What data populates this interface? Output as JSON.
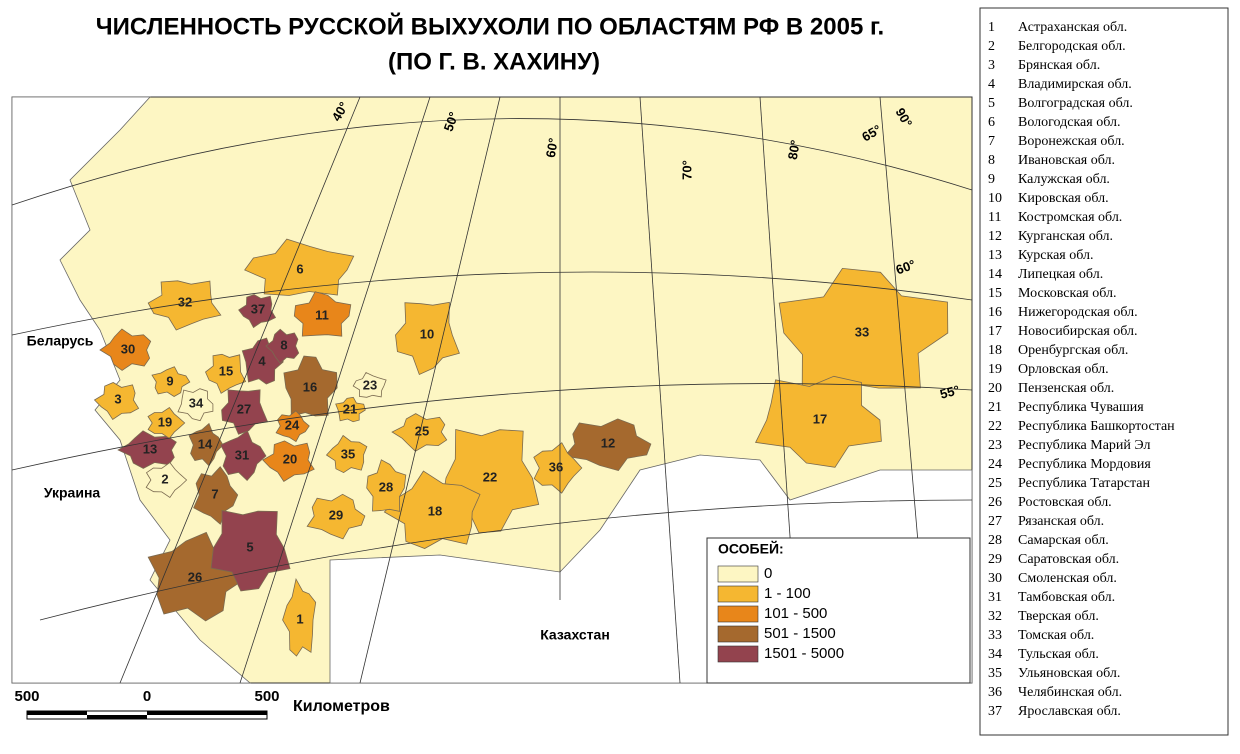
{
  "title": {
    "line1": "ЧИСЛЕННОСТЬ РУССКОЙ ВЫХУХОЛИ ПО ОБЛАСТЯМ РФ В 2005 г.",
    "line2": "(ПО Г. В. ХАХИНУ)"
  },
  "legend": {
    "title": "ОСОБЕЙ:",
    "items": [
      {
        "label": "0",
        "color": "#fdf6c3"
      },
      {
        "label": "1 - 100",
        "color": "#f5b731"
      },
      {
        "label": "101 - 500",
        "color": "#e8861a"
      },
      {
        "label": "501 - 1500",
        "color": "#a5692e"
      },
      {
        "label": "1501 - 5000",
        "color": "#93434e"
      }
    ]
  },
  "map": {
    "countries": [
      "Беларусь",
      "Украина",
      "Казахстан"
    ],
    "graticule": [
      "40°",
      "50°",
      "60°",
      "70°",
      "80°",
      "65°",
      "90°",
      "60°",
      "55°"
    ],
    "regions": [
      {
        "label": "1",
        "class": 1
      },
      {
        "label": "2",
        "class": 0
      },
      {
        "label": "3",
        "class": 1
      },
      {
        "label": "4",
        "class": 4
      },
      {
        "label": "5",
        "class": 4
      },
      {
        "label": "6",
        "class": 1
      },
      {
        "label": "7",
        "class": 3
      },
      {
        "label": "8",
        "class": 4
      },
      {
        "label": "9",
        "class": 1
      },
      {
        "label": "10",
        "class": 1
      },
      {
        "label": "11",
        "class": 2
      },
      {
        "label": "12",
        "class": 3
      },
      {
        "label": "13",
        "class": 4
      },
      {
        "label": "14",
        "class": 3
      },
      {
        "label": "15",
        "class": 1
      },
      {
        "label": "16",
        "class": 3
      },
      {
        "label": "17",
        "class": 1
      },
      {
        "label": "18",
        "class": 1
      },
      {
        "label": "19",
        "class": 1
      },
      {
        "label": "20",
        "class": 2
      },
      {
        "label": "21",
        "class": 1
      },
      {
        "label": "22",
        "class": 1
      },
      {
        "label": "23",
        "class": 0
      },
      {
        "label": "24",
        "class": 2
      },
      {
        "label": "25",
        "class": 1
      },
      {
        "label": "26",
        "class": 3
      },
      {
        "label": "27",
        "class": 4
      },
      {
        "label": "28",
        "class": 1
      },
      {
        "label": "29",
        "class": 1
      },
      {
        "label": "30",
        "class": 2
      },
      {
        "label": "31",
        "class": 4
      },
      {
        "label": "32",
        "class": 1
      },
      {
        "label": "33",
        "class": 1
      },
      {
        "label": "34",
        "class": 0
      },
      {
        "label": "35",
        "class": 1
      },
      {
        "label": "36",
        "class": 1
      },
      {
        "label": "37",
        "class": 4
      }
    ]
  },
  "scale": {
    "labels": [
      "500",
      "0",
      "500"
    ],
    "unit": "Километров"
  },
  "region_list": [
    {
      "number": "1",
      "name": "Астраханская обл."
    },
    {
      "number": "2",
      "name": "Белгородская обл."
    },
    {
      "number": "3",
      "name": "Брянская обл."
    },
    {
      "number": "4",
      "name": "Владимирская обл."
    },
    {
      "number": "5",
      "name": "Волгоградская обл."
    },
    {
      "number": "6",
      "name": "Вологодская обл."
    },
    {
      "number": "7",
      "name": "Воронежская обл."
    },
    {
      "number": "8",
      "name": "Ивановская обл."
    },
    {
      "number": "9",
      "name": "Калужская обл."
    },
    {
      "number": "10",
      "name": "Кировская обл."
    },
    {
      "number": "11",
      "name": "Костромская обл."
    },
    {
      "number": "12",
      "name": "Курганская обл."
    },
    {
      "number": "13",
      "name": "Курская обл."
    },
    {
      "number": "14",
      "name": "Липецкая обл."
    },
    {
      "number": "15",
      "name": "Московская обл."
    },
    {
      "number": "16",
      "name": "Нижегородская обл."
    },
    {
      "number": "17",
      "name": "Новосибирская обл."
    },
    {
      "number": "18",
      "name": "Оренбургская обл."
    },
    {
      "number": "19",
      "name": "Орловская обл."
    },
    {
      "number": "20",
      "name": "Пензенская обл."
    },
    {
      "number": "21",
      "name": "Республика Чувашия"
    },
    {
      "number": "22",
      "name": "Республика Башкортостан"
    },
    {
      "number": "23",
      "name": "Республика Марий Эл"
    },
    {
      "number": "24",
      "name": "Республика Мордовия"
    },
    {
      "number": "25",
      "name": "Республика Татарстан"
    },
    {
      "number": "26",
      "name": "Ростовская обл."
    },
    {
      "number": "27",
      "name": "Рязанская обл."
    },
    {
      "number": "28",
      "name": "Самарская обл."
    },
    {
      "number": "29",
      "name": "Саратовская обл."
    },
    {
      "number": "30",
      "name": "Смоленская обл."
    },
    {
      "number": "31",
      "name": "Тамбовская обл."
    },
    {
      "number": "32",
      "name": "Тверская обл."
    },
    {
      "number": "33",
      "name": "Томская обл."
    },
    {
      "number": "34",
      "name": "Тульская обл."
    },
    {
      "number": "35",
      "name": "Ульяновская обл."
    },
    {
      "number": "36",
      "name": "Челябинская обл."
    },
    {
      "number": "37",
      "name": "Ярославская обл."
    }
  ]
}
